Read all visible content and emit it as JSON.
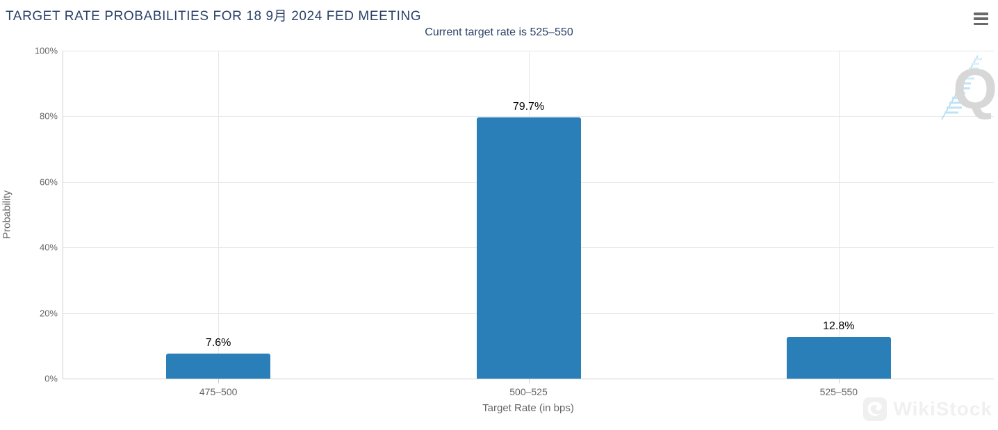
{
  "header": {
    "title": "TARGET RATE PROBABILITIES FOR 18 9月 2024 FED MEETING",
    "subtitle": "Current target rate is 525–550"
  },
  "menu": {
    "icon": "hamburger-menu-icon"
  },
  "chart_data": {
    "type": "bar",
    "title": "TARGET RATE PROBABILITIES FOR 18 9月 2024 FED MEETING",
    "subtitle": "Current target rate is 525–550",
    "categories": [
      "475–500",
      "500–525",
      "525–550"
    ],
    "values": [
      7.6,
      79.7,
      12.8
    ],
    "value_labels": [
      "7.6%",
      "79.7%",
      "12.8%"
    ],
    "xlabel": "Target Rate (in bps)",
    "ylabel": "Probability",
    "ylim": [
      0,
      100
    ],
    "yticks": [
      "0%",
      "20%",
      "40%",
      "60%",
      "80%",
      "100%"
    ],
    "grid": true,
    "legend": "none",
    "bar_color": "#2b7fb8"
  },
  "watermarks": {
    "q_logo": "Q",
    "wikistock": "WikiStock"
  },
  "colors": {
    "title_navy": "#2b4268",
    "axis_text": "#666666",
    "gridline": "#e6e6e6",
    "axis_line": "#c9ced4",
    "bar_blue": "#2b7fb8",
    "data_label": "#000000",
    "watermark_gray": "#f0f0f0"
  }
}
